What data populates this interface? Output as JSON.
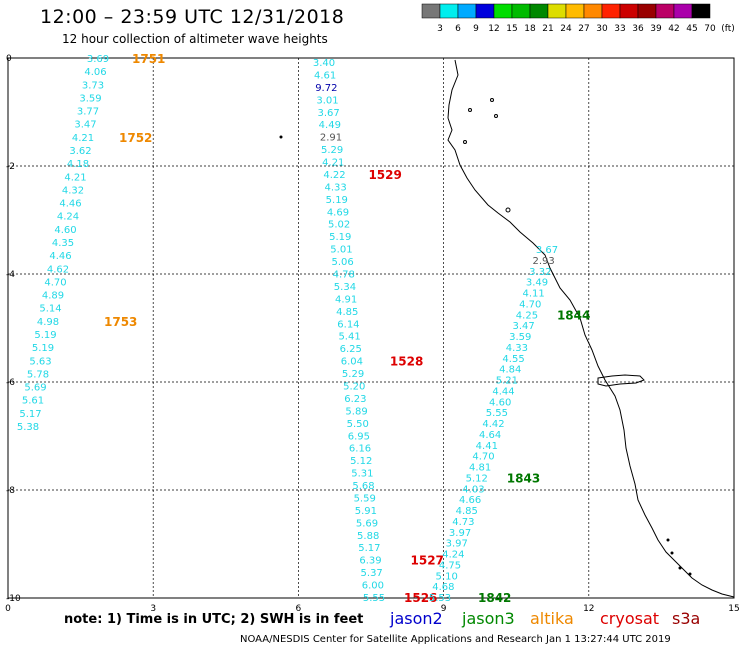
{
  "title": "12:00 – 23:59 UTC 12/31/2018",
  "subtitle": "12 hour collection of altimeter wave heights",
  "colors": {
    "cyan": "#22d8e6",
    "navy": "#0000aa",
    "gray": "#555555",
    "orange": "#ee8800",
    "red": "#dd0000",
    "green": "#007700",
    "purple": "#6600aa",
    "jason2": "#0000cc",
    "jason3": "#008800",
    "altika": "#ee8800",
    "cryosat": "#dd0000",
    "s3a": "#990000"
  },
  "color_scale": {
    "labels": [
      "3",
      "6",
      "9",
      "12",
      "15",
      "18",
      "21",
      "24",
      "27",
      "30",
      "33",
      "36",
      "39",
      "42",
      "45",
      "70",
      "(ft)"
    ],
    "colors": [
      "#777777",
      "#00eeee",
      "#00aaff",
      "#0000dd",
      "#00dd00",
      "#00bb00",
      "#008800",
      "#dddd00",
      "#ffbb00",
      "#ff8800",
      "#ff2200",
      "#cc0000",
      "#990000",
      "#bb0066",
      "#aa00aa",
      "#000000"
    ]
  },
  "axes": {
    "x_ticks": [
      "0",
      "3",
      "6",
      "9",
      "12",
      "15"
    ],
    "y_ticks": [
      "0",
      "-2",
      "-4",
      "-6",
      "-8",
      "-10"
    ]
  },
  "tracks": [
    {
      "values": [
        "3.69",
        "4.06",
        "3.73",
        "3.59",
        "3.77",
        "3.47",
        "4.21",
        "3.62",
        "4.18",
        "4.21",
        "4.32",
        "4.46",
        "4.24",
        "4.60",
        "4.35",
        "4.46",
        "4.62",
        "4.70",
        "4.89",
        "5.14",
        "4.98",
        "5.19",
        "5.19",
        "5.63",
        "5.78",
        "5.69",
        "5.61",
        "5.17",
        "5.38"
      ],
      "times": [
        {
          "text": "1751",
          "at": 0
        },
        {
          "text": "1752",
          "at": 6
        },
        {
          "text": "1753",
          "at": 20
        }
      ],
      "time_color": "orange"
    },
    {
      "values": [
        "3.40",
        "4.61",
        "9.72",
        "3.01",
        "3.67",
        "4.49",
        "2.91",
        "5.29",
        "4.21",
        "4.22",
        "4.33",
        "5.19",
        "4.69",
        "5.02",
        "5.19",
        "5.01",
        "5.06",
        "4.78",
        "5.34",
        "4.91",
        "4.85",
        "6.14",
        "5.41",
        "6.25",
        "6.04",
        "5.29",
        "5.20",
        "6.23",
        "5.89",
        "5.50",
        "6.95",
        "6.16",
        "5.12",
        "5.31",
        "5.68",
        "5.59",
        "5.91",
        "5.69",
        "5.88",
        "5.17",
        "6.39",
        "5.37",
        "6.00",
        "5.55"
      ],
      "times": [
        {
          "text": "1529",
          "at": 9
        },
        {
          "text": "1528",
          "at": 24
        },
        {
          "text": "1527",
          "at": 40
        },
        {
          "text": "1526",
          "at": 43
        }
      ],
      "time_color": "red"
    },
    {
      "values": [
        "3.67",
        "2.93",
        "3.32",
        "3.49",
        "4.11",
        "4.70",
        "4.25",
        "3.47",
        "3.59",
        "4.33",
        "4.55",
        "4.84",
        "5.21",
        "4.44",
        "4.60",
        "5.55",
        "4.42",
        "4.64",
        "4.41",
        "4.70",
        "4.81",
        "5.12",
        "4.03",
        "4.66",
        "4.85",
        "4.73",
        "3.97",
        "3.97",
        "4.24",
        "4.75",
        "5.10",
        "4.68",
        "5.53"
      ],
      "times": [
        {
          "text": "1844",
          "at": 6
        },
        {
          "text": "1843",
          "at": 21
        },
        {
          "text": "1842",
          "at": 32
        }
      ],
      "time_color": "green"
    }
  ],
  "note": "note:  1) Time is in UTC; 2) SWH is in feet",
  "satellites": [
    "jason2",
    "jason3",
    "altika",
    "cryosat",
    "s3a"
  ],
  "credit": "NOAA/NESDIS Center for Satellite Applications and Research    Jan  1 13:27:44 UTC 2019"
}
